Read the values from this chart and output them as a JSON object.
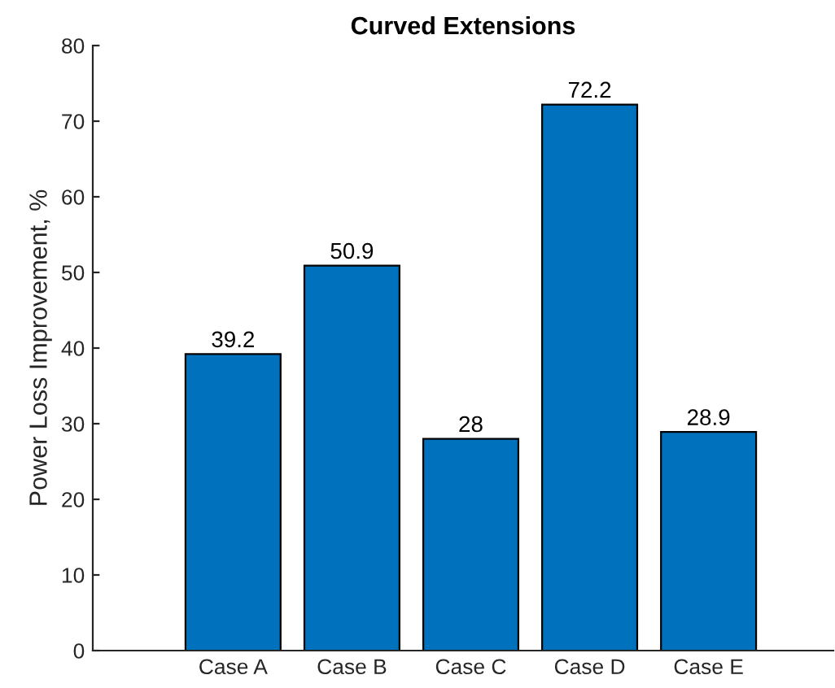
{
  "chart_data": {
    "type": "bar",
    "title": "Curved Extensions",
    "ylabel": "Power Loss Improvement, %",
    "categories": [
      "Case A",
      "Case B",
      "Case C",
      "Case D",
      "Case E"
    ],
    "values": [
      39.2,
      50.9,
      28,
      72.2,
      28.9
    ],
    "color": "#0072bd",
    "ylim": [
      0,
      80
    ],
    "yticks": [
      0,
      10,
      20,
      30,
      40,
      50,
      60,
      70,
      80
    ],
    "data_labels": true,
    "grid": false,
    "legend": false
  }
}
